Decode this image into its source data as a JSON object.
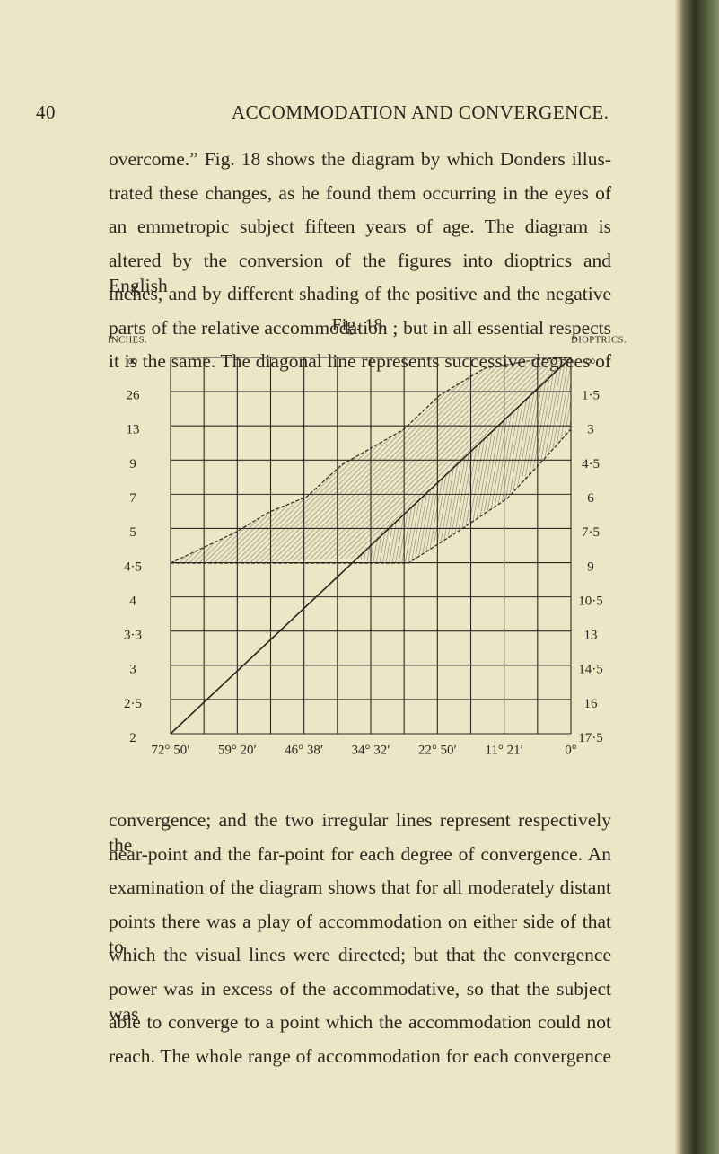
{
  "header": {
    "page_number": "40",
    "running_title": "ACCOMMODATION AND CONVERGENCE."
  },
  "paragraph_1": [
    "overcome.” Fig. 18 shows the diagram by which Donders illus-",
    "trated these changes, as he found them occurring in the eyes of",
    "an emmetropic subject fifteen years of age. The diagram is",
    "altered by the conversion of the figures into dioptrics and English",
    "inches, and by different shading of the positive and the negative",
    "parts of the relative accommodation ; but in all essential respects",
    "it is the same. The diagonal line represents successive degrees of"
  ],
  "figure": {
    "caption": "Fig. 18.",
    "left_axis_title": "INCHES.",
    "right_axis_title": "DIOPTRICS.",
    "left_labels": [
      "∞",
      "26",
      "13",
      "9",
      "7",
      "5",
      "4·5",
      "4",
      "3·3",
      "3",
      "2·5",
      "2"
    ],
    "right_labels": [
      "∞",
      "1·5",
      "3",
      "4·5",
      "6",
      "7·5",
      "9",
      "10·5",
      "13",
      "14·5",
      "16",
      "17·5"
    ],
    "bottom_labels": [
      "72° 50′",
      "59° 20′",
      "46° 38′",
      "34° 32′",
      "22° 50′",
      "11° 21′",
      "0°"
    ]
  },
  "paragraph_2": [
    "convergence; and the two irregular lines represent respectively the",
    "near-point and the far-point for each degree of convergence. An",
    "examination of the diagram shows that for all moderately distant",
    "points there was a play of accommodation on either side of that to",
    "which the visual lines were directed; but that the convergence",
    "power was in excess of the accommodative, so that the subject was",
    "able to converge to a point which the accommodation could not",
    "reach. The whole range of accommodation for each convergence"
  ]
}
